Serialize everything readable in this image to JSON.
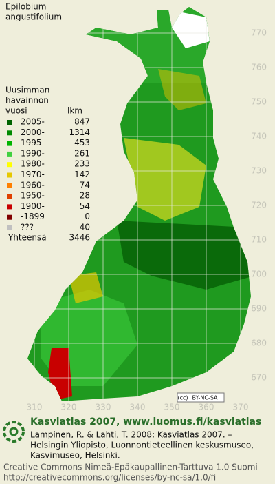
{
  "title": [
    "Epilobium",
    "angustifolium"
  ],
  "legend": {
    "heading": [
      "Uusimman",
      "havainnon"
    ],
    "col_year": "vuosi",
    "col_count": "lkm",
    "rows": [
      {
        "label": "2005-",
        "count": 847,
        "color": "#006400"
      },
      {
        "label": "2000-",
        "count": 1314,
        "color": "#008a00"
      },
      {
        "label": "1995-",
        "count": 453,
        "color": "#00b400"
      },
      {
        "label": "1990-",
        "count": 261,
        "color": "#40d040"
      },
      {
        "label": "1980-",
        "count": 233,
        "color": "#ffff00"
      },
      {
        "label": "1970-",
        "count": 142,
        "color": "#e6c800"
      },
      {
        "label": "1960-",
        "count": 74,
        "color": "#ff8000"
      },
      {
        "label": "1950-",
        "count": 28,
        "color": "#e04000"
      },
      {
        "label": "1900-",
        "count": 54,
        "color": "#c80000"
      },
      {
        "label": "-1899",
        "count": 0,
        "color": "#800000"
      },
      {
        "label": "???",
        "count": 40,
        "color": "#c0c0c0"
      }
    ],
    "total_label": "Yhteensä",
    "total": 3446
  },
  "axes": {
    "y_ticks": [
      770,
      760,
      750,
      740,
      730,
      720,
      710,
      700,
      690,
      680,
      670
    ],
    "x_ticks": [
      310,
      320,
      330,
      340,
      350,
      360,
      370
    ]
  },
  "license_badge": "BY-NC-SA",
  "footer": {
    "site": "Kasviatlas 2007, www.luomus.fi/kasviatlas",
    "citation": [
      "Lampinen, R. & Lahti, T. 2008: Kasviatlas 2007. –",
      "Helsingin Yliopisto, Luonnontieteellinen keskusmuseo,",
      "Kasvimuseo, Helsinki."
    ],
    "license": [
      "Creative Commons Nimeä-Epäkaupallinen-Tarttuva 1.0 Suomi",
      "http://creativecommons.org/licenses/by-nc-sa/1.0/fi"
    ]
  }
}
